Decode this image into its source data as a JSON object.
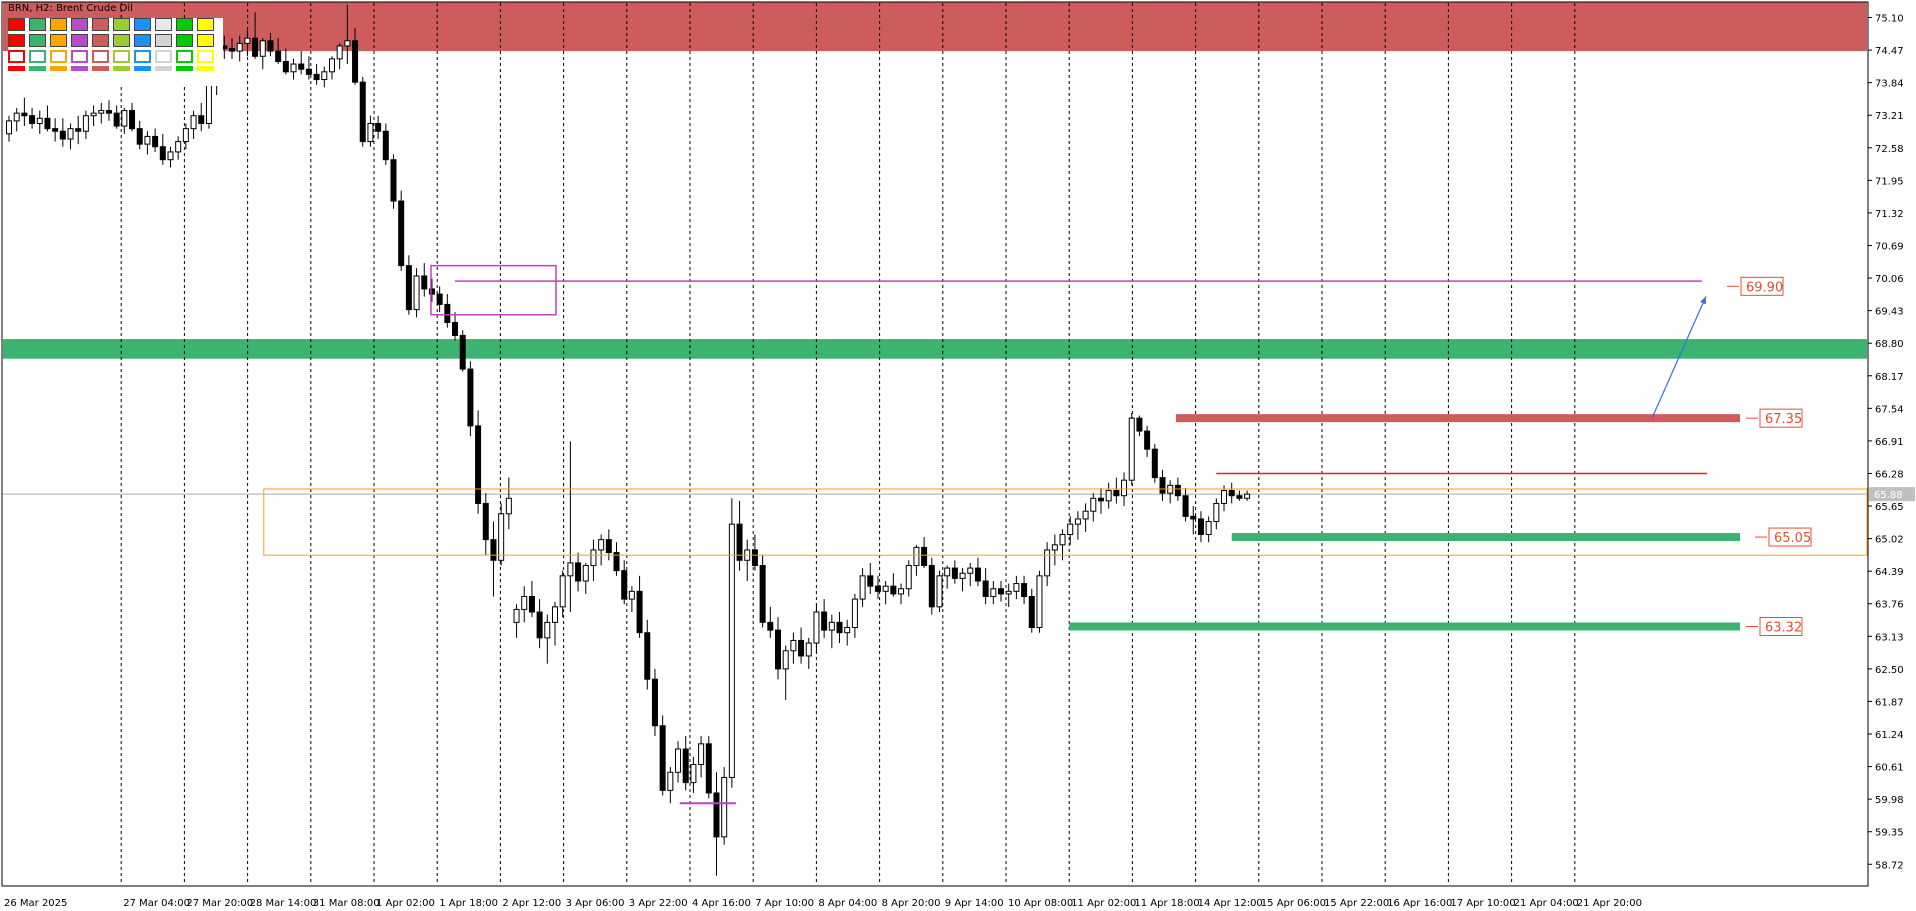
{
  "window": {
    "title": "BRN, H2: Brent Crude Oil"
  },
  "toolbar": {
    "color_palette": [
      "#ff0000",
      "#3cb371",
      "#ffa500",
      "#b04fc7",
      "#cd5c5c",
      "#9acd32",
      "#1e90ff",
      "#d3d3d3",
      "#00cc00",
      "#ffff00"
    ]
  },
  "chart_data": {
    "type": "candlestick",
    "symbol": "BRN",
    "timeframe": "H2",
    "instrument": "Brent Crude Oil",
    "ylim": [
      58.3,
      75.4
    ],
    "y_ticks": [
      "75.10",
      "74.47",
      "73.84",
      "73.21",
      "72.58",
      "71.95",
      "71.32",
      "70.69",
      "70.06",
      "69.43",
      "68.80",
      "68.17",
      "67.54",
      "66.91",
      "66.28",
      "65.65",
      "65.02",
      "64.39",
      "63.76",
      "63.13",
      "62.50",
      "61.87",
      "61.24",
      "60.61",
      "59.98",
      "59.35",
      "58.72"
    ],
    "x_ticks": [
      "26 Mar 2025",
      "27 Mar 04:00",
      "27 Mar 20:00",
      "28 Mar 14:00",
      "31 Mar 08:00",
      "1 Apr 02:00",
      "1 Apr 18:00",
      "2 Apr 12:00",
      "3 Apr 06:00",
      "3 Apr 22:00",
      "4 Apr 16:00",
      "7 Apr 10:00",
      "8 Apr 04:00",
      "8 Apr 20:00",
      "9 Apr 14:00",
      "10 Apr 08:00",
      "11 Apr 02:00",
      "11 Apr 18:00",
      "14 Apr 12:00",
      "15 Apr 06:00",
      "15 Apr 22:00",
      "16 Apr 16:00",
      "17 Apr 10:00",
      "21 Apr 04:00",
      "21 Apr 20:00"
    ],
    "grid": "vertical dashed",
    "current_price": 65.88,
    "candles": [
      [
        72.85,
        73.2,
        72.7,
        73.1
      ],
      [
        73.1,
        73.35,
        72.9,
        73.25
      ],
      [
        73.25,
        73.55,
        73.0,
        73.2
      ],
      [
        73.2,
        73.35,
        72.95,
        73.05
      ],
      [
        73.05,
        73.3,
        72.85,
        73.15
      ],
      [
        73.15,
        73.4,
        72.9,
        72.95
      ],
      [
        72.95,
        73.15,
        72.7,
        72.9
      ],
      [
        72.9,
        73.15,
        72.6,
        72.75
      ],
      [
        72.75,
        73.05,
        72.55,
        72.95
      ],
      [
        72.95,
        73.2,
        72.65,
        72.9
      ],
      [
        72.9,
        73.3,
        72.75,
        73.2
      ],
      [
        73.2,
        73.4,
        73.0,
        73.25
      ],
      [
        73.25,
        73.45,
        73.05,
        73.3
      ],
      [
        73.3,
        73.5,
        73.1,
        73.25
      ],
      [
        73.25,
        73.4,
        72.95,
        73.0
      ],
      [
        73.0,
        73.35,
        72.85,
        73.3
      ],
      [
        73.3,
        73.45,
        72.9,
        72.95
      ],
      [
        72.95,
        73.1,
        72.55,
        72.65
      ],
      [
        72.65,
        72.9,
        72.45,
        72.8
      ],
      [
        72.8,
        72.95,
        72.5,
        72.6
      ],
      [
        72.6,
        72.85,
        72.25,
        72.35
      ],
      [
        72.35,
        72.6,
        72.2,
        72.5
      ],
      [
        72.5,
        72.8,
        72.35,
        72.7
      ],
      [
        72.7,
        73.05,
        72.55,
        72.95
      ],
      [
        72.95,
        73.3,
        72.75,
        73.2
      ],
      [
        73.2,
        73.45,
        72.9,
        73.05
      ],
      [
        73.05,
        73.9,
        72.95,
        73.8
      ],
      [
        73.8,
        74.75,
        73.6,
        74.55
      ],
      [
        74.55,
        74.75,
        74.3,
        74.5
      ],
      [
        74.5,
        74.7,
        74.3,
        74.45
      ],
      [
        74.45,
        74.75,
        74.25,
        74.6
      ],
      [
        74.6,
        74.85,
        74.35,
        74.7
      ],
      [
        74.7,
        75.2,
        74.3,
        74.35
      ],
      [
        74.35,
        74.7,
        74.1,
        74.65
      ],
      [
        74.65,
        74.8,
        74.35,
        74.45
      ],
      [
        74.45,
        74.7,
        74.2,
        74.25
      ],
      [
        74.25,
        74.5,
        74.0,
        74.05
      ],
      [
        74.05,
        74.3,
        73.9,
        74.2
      ],
      [
        74.2,
        74.45,
        74.0,
        74.1
      ],
      [
        74.1,
        74.35,
        73.9,
        74.0
      ],
      [
        74.0,
        74.2,
        73.8,
        73.9
      ],
      [
        73.9,
        74.15,
        73.75,
        74.05
      ],
      [
        74.05,
        74.35,
        73.9,
        74.3
      ],
      [
        74.3,
        74.6,
        74.1,
        74.55
      ],
      [
        74.55,
        75.35,
        74.2,
        74.65
      ],
      [
        74.65,
        74.9,
        73.8,
        73.85
      ],
      [
        73.85,
        73.95,
        72.6,
        72.7
      ],
      [
        72.7,
        73.2,
        72.6,
        73.05
      ],
      [
        73.05,
        73.2,
        72.75,
        72.9
      ],
      [
        72.9,
        73.05,
        72.25,
        72.35
      ],
      [
        72.35,
        72.45,
        71.4,
        71.55
      ],
      [
        71.55,
        71.75,
        70.2,
        70.3
      ],
      [
        70.3,
        70.5,
        69.35,
        69.45
      ],
      [
        69.45,
        70.25,
        69.3,
        70.1
      ],
      [
        70.1,
        70.35,
        69.7,
        69.85
      ],
      [
        69.85,
        70.05,
        69.6,
        69.75
      ],
      [
        69.75,
        69.9,
        69.4,
        69.55
      ],
      [
        69.55,
        69.75,
        69.1,
        69.2
      ],
      [
        69.2,
        69.4,
        68.85,
        68.95
      ],
      [
        68.95,
        69.05,
        68.25,
        68.3
      ],
      [
        68.3,
        68.45,
        67.0,
        67.2
      ],
      [
        67.2,
        67.5,
        65.5,
        65.7
      ],
      [
        65.7,
        65.9,
        64.7,
        65.0
      ],
      [
        65.0,
        65.35,
        63.9,
        64.6
      ],
      [
        64.6,
        65.7,
        64.5,
        65.5
      ],
      [
        65.5,
        66.2,
        65.2,
        65.8
      ],
      [
        63.4,
        63.75,
        63.1,
        63.65
      ],
      [
        63.65,
        64.1,
        63.4,
        63.9
      ],
      [
        63.9,
        64.2,
        63.5,
        63.6
      ],
      [
        63.6,
        63.85,
        62.9,
        63.1
      ],
      [
        63.1,
        63.55,
        62.6,
        63.4
      ],
      [
        63.4,
        63.8,
        62.95,
        63.7
      ],
      [
        63.7,
        64.4,
        63.5,
        64.3
      ],
      [
        64.3,
        66.9,
        63.6,
        64.55
      ],
      [
        64.55,
        64.75,
        64.0,
        64.2
      ],
      [
        64.2,
        64.55,
        63.95,
        64.5
      ],
      [
        64.5,
        65.0,
        64.2,
        64.8
      ],
      [
        64.8,
        65.1,
        64.5,
        65.0
      ],
      [
        65.0,
        65.2,
        64.6,
        64.75
      ],
      [
        64.75,
        64.95,
        64.3,
        64.4
      ],
      [
        64.4,
        64.6,
        63.75,
        63.85
      ],
      [
        63.85,
        64.1,
        63.6,
        64.0
      ],
      [
        64.0,
        64.3,
        63.1,
        63.2
      ],
      [
        63.2,
        63.45,
        62.1,
        62.3
      ],
      [
        62.3,
        62.5,
        61.2,
        61.4
      ],
      [
        61.4,
        61.6,
        60.05,
        60.15
      ],
      [
        60.15,
        60.6,
        59.9,
        60.5
      ],
      [
        60.5,
        61.1,
        60.3,
        60.95
      ],
      [
        60.95,
        61.2,
        60.15,
        60.3
      ],
      [
        60.3,
        60.8,
        60.1,
        60.65
      ],
      [
        60.65,
        61.2,
        60.4,
        61.05
      ],
      [
        61.05,
        61.2,
        60.0,
        60.1
      ],
      [
        60.1,
        60.5,
        58.5,
        59.25
      ],
      [
        59.25,
        60.6,
        59.1,
        60.4
      ],
      [
        60.4,
        65.8,
        60.2,
        65.3
      ],
      [
        65.3,
        65.75,
        64.4,
        64.6
      ],
      [
        64.6,
        65.0,
        64.2,
        64.8
      ],
      [
        64.8,
        65.1,
        64.4,
        64.5
      ],
      [
        64.5,
        64.7,
        63.3,
        63.4
      ],
      [
        63.4,
        63.7,
        63.1,
        63.25
      ],
      [
        63.25,
        63.5,
        62.3,
        62.5
      ],
      [
        62.5,
        62.95,
        61.9,
        62.85
      ],
      [
        62.85,
        63.2,
        62.6,
        63.05
      ],
      [
        63.05,
        63.3,
        62.6,
        62.75
      ],
      [
        62.75,
        63.1,
        62.5,
        63.0
      ],
      [
        63.0,
        63.75,
        62.8,
        63.6
      ],
      [
        63.6,
        63.85,
        63.1,
        63.25
      ],
      [
        63.25,
        63.55,
        62.9,
        63.4
      ],
      [
        63.4,
        63.6,
        63.0,
        63.2
      ],
      [
        63.2,
        63.45,
        62.95,
        63.3
      ],
      [
        63.3,
        63.95,
        63.1,
        63.85
      ],
      [
        63.85,
        64.45,
        63.7,
        64.3
      ],
      [
        64.3,
        64.55,
        63.95,
        64.1
      ],
      [
        64.1,
        64.3,
        63.85,
        64.0
      ],
      [
        64.0,
        64.2,
        63.75,
        64.1
      ],
      [
        64.1,
        64.35,
        63.9,
        63.95
      ],
      [
        63.95,
        64.15,
        63.75,
        64.05
      ],
      [
        64.05,
        64.6,
        63.9,
        64.5
      ],
      [
        64.5,
        64.9,
        64.3,
        64.85
      ],
      [
        64.85,
        65.05,
        64.45,
        64.5
      ],
      [
        64.5,
        64.65,
        63.55,
        63.7
      ],
      [
        63.7,
        64.4,
        63.6,
        64.3
      ],
      [
        64.3,
        64.5,
        64.05,
        64.45
      ],
      [
        64.45,
        64.6,
        64.15,
        64.25
      ],
      [
        64.25,
        64.45,
        64.0,
        64.35
      ],
      [
        64.35,
        64.55,
        64.1,
        64.45
      ],
      [
        64.45,
        64.65,
        64.1,
        64.2
      ],
      [
        64.2,
        64.45,
        63.75,
        63.9
      ],
      [
        63.9,
        64.2,
        63.75,
        64.05
      ],
      [
        64.05,
        64.2,
        63.8,
        63.95
      ],
      [
        63.95,
        64.15,
        63.7,
        64.0
      ],
      [
        64.0,
        64.3,
        63.85,
        64.15
      ],
      [
        64.15,
        64.3,
        63.75,
        63.9
      ],
      [
        63.9,
        64.05,
        63.2,
        63.3
      ],
      [
        63.3,
        64.4,
        63.2,
        64.3
      ],
      [
        64.3,
        64.95,
        64.1,
        64.8
      ],
      [
        64.8,
        65.1,
        64.5,
        64.9
      ],
      [
        64.9,
        65.2,
        64.6,
        65.1
      ],
      [
        65.1,
        65.45,
        64.9,
        65.3
      ],
      [
        65.3,
        65.55,
        65.0,
        65.4
      ],
      [
        65.4,
        65.7,
        65.15,
        65.55
      ],
      [
        65.55,
        65.9,
        65.35,
        65.8
      ],
      [
        65.8,
        66.0,
        65.5,
        65.75
      ],
      [
        65.75,
        66.1,
        65.6,
        65.95
      ],
      [
        65.95,
        66.2,
        65.7,
        65.85
      ],
      [
        65.85,
        66.3,
        65.65,
        66.15
      ],
      [
        66.15,
        67.45,
        66.05,
        67.35
      ],
      [
        67.35,
        67.4,
        67.0,
        67.1
      ],
      [
        67.1,
        67.2,
        66.6,
        66.75
      ],
      [
        66.75,
        66.85,
        66.1,
        66.2
      ],
      [
        66.2,
        66.35,
        65.75,
        65.9
      ],
      [
        65.9,
        66.15,
        65.7,
        66.05
      ],
      [
        66.05,
        66.2,
        65.75,
        65.85
      ],
      [
        65.85,
        66.0,
        65.35,
        65.45
      ],
      [
        65.45,
        65.65,
        65.1,
        65.4
      ],
      [
        65.4,
        65.55,
        64.95,
        65.1
      ],
      [
        65.1,
        65.45,
        64.95,
        65.35
      ],
      [
        65.35,
        65.8,
        65.2,
        65.7
      ],
      [
        65.7,
        66.05,
        65.55,
        65.95
      ],
      [
        65.95,
        66.1,
        65.7,
        65.85
      ],
      [
        65.85,
        65.95,
        65.75,
        65.8
      ],
      [
        65.8,
        65.95,
        65.75,
        65.88
      ]
    ],
    "annotations": {
      "resistance_zone": {
        "from": 74.45,
        "to": 75.4
      },
      "support_band": {
        "from": 68.5,
        "to": 68.88
      },
      "purple_box": {
        "from": 69.35,
        "to": 70.3
      },
      "orange_box": {
        "from": 64.7,
        "to": 65.98
      },
      "purple_line": 70.0,
      "red_line": 66.28,
      "red_bar": 67.35,
      "green_bar_upper": 65.05,
      "green_bar_lower": 63.32,
      "purple_low_marker": 59.9,
      "target_arrow": {
        "from": 67.35,
        "to": 69.9
      }
    },
    "level_labels": [
      "69.90",
      "67.35",
      "65.05",
      "63.32"
    ],
    "current_price_label": "65.88"
  }
}
